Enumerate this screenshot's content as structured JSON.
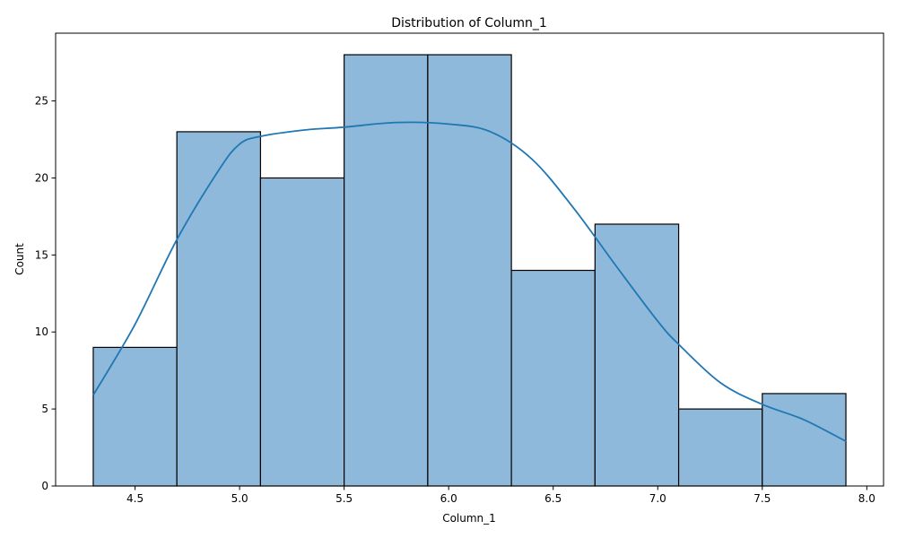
{
  "chart_data": {
    "type": "bar",
    "title": "Distribution of Column_1",
    "xlabel": "Column_1",
    "ylabel": "Count",
    "bins": [
      {
        "start": 4.3,
        "end": 4.7,
        "count": 9
      },
      {
        "start": 4.7,
        "end": 5.1,
        "count": 23
      },
      {
        "start": 5.1,
        "end": 5.5,
        "count": 20
      },
      {
        "start": 5.5,
        "end": 5.9,
        "count": 28
      },
      {
        "start": 5.9,
        "end": 6.3,
        "count": 28
      },
      {
        "start": 6.3,
        "end": 6.7,
        "count": 14
      },
      {
        "start": 6.7,
        "end": 7.1,
        "count": 17
      },
      {
        "start": 7.1,
        "end": 7.5,
        "count": 5
      },
      {
        "start": 7.5,
        "end": 7.9,
        "count": 6
      }
    ],
    "kde": {
      "x": [
        4.3,
        4.5,
        4.7,
        4.9,
        5.0,
        5.1,
        5.3,
        5.5,
        5.75,
        6.0,
        6.2,
        6.4,
        6.6,
        6.8,
        7.0,
        7.1,
        7.3,
        7.5,
        7.7,
        7.9
      ],
      "y": [
        5.9,
        10.5,
        16.0,
        20.5,
        22.2,
        22.7,
        23.1,
        23.3,
        23.6,
        23.5,
        23.0,
        21.2,
        18.0,
        14.3,
        10.7,
        9.2,
        6.7,
        5.3,
        4.3,
        2.9
      ]
    },
    "xlim": [
      4.12,
      8.08
    ],
    "ylim": [
      0,
      29.4
    ],
    "xticks": [
      "4.5",
      "5.0",
      "5.5",
      "6.0",
      "6.5",
      "7.0",
      "7.5",
      "8.0"
    ],
    "yticks": [
      "0",
      "5",
      "10",
      "15",
      "20",
      "25"
    ],
    "grid": false,
    "colors": {
      "bar_fill": "#8fb9da",
      "bar_edge": "#000000",
      "kde_line": "#1f77b4"
    }
  }
}
